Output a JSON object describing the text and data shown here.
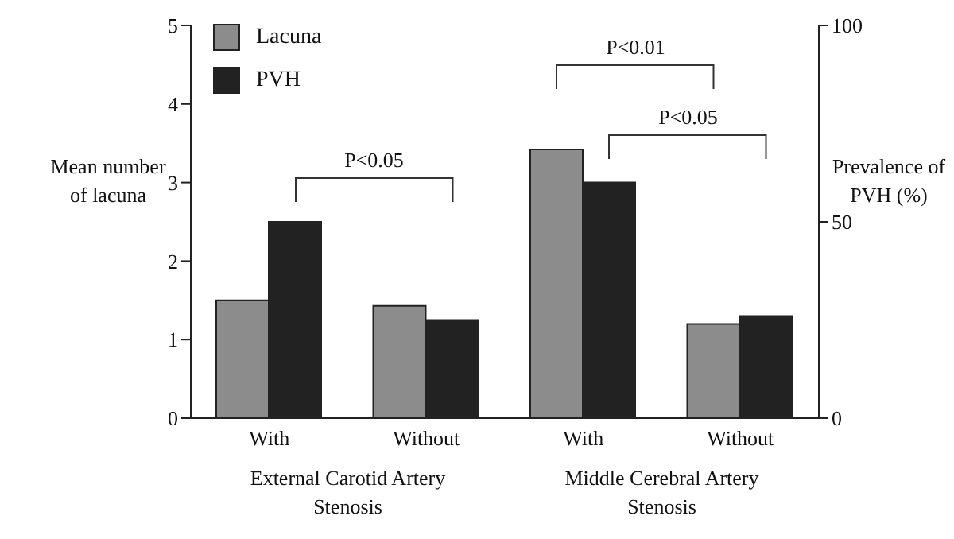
{
  "chart_data": {
    "type": "bar",
    "ylabel": "Mean number of lacuna",
    "y2label": "Prevalence of PVH (%)",
    "categories": [
      "With",
      "Without",
      "With",
      "Without"
    ],
    "series": [
      {
        "name": "Lacuna",
        "color": "#8c8c8c",
        "values": [
          1.5,
          1.43,
          3.42,
          1.2
        ]
      },
      {
        "name": "PVH",
        "color": "#222222",
        "values": [
          50,
          25,
          60,
          26
        ],
        "axis": "y2"
      }
    ],
    "ylim": [
      0,
      5
    ],
    "yticks": [
      0,
      1,
      2,
      3,
      4,
      5
    ],
    "y2lim": [
      0,
      100
    ],
    "y2ticks": [
      0,
      50,
      100
    ],
    "legend": "top left",
    "grid": false,
    "annotations": [
      "P<0.05",
      "P<0.01",
      "P<0.05",
      "External Carotid Artery Stenosis",
      "Middle Cerebral Artery Stenosis"
    ]
  }
}
